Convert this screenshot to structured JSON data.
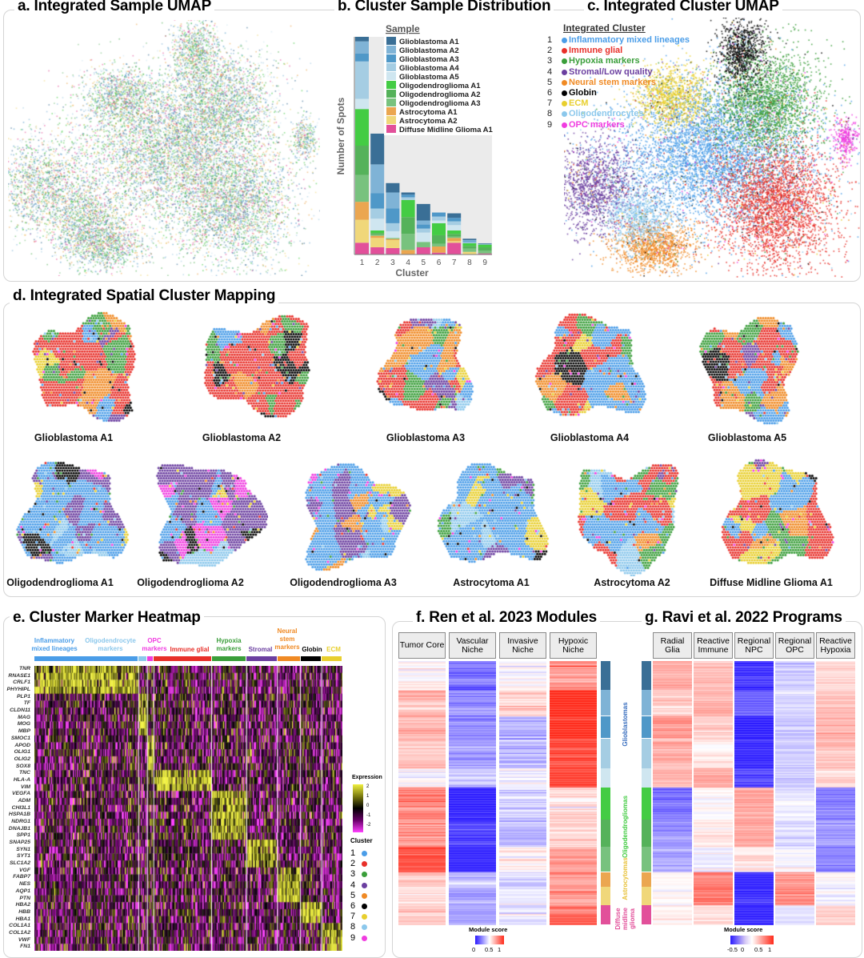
{
  "panels": {
    "a": {
      "title": "a. Integrated Sample UMAP"
    },
    "b": {
      "title": "b. Cluster Sample Distribution",
      "legend_title": "Sample"
    },
    "c": {
      "title": "c. Integrated Cluster UMAP",
      "legend_title": "Integrated Cluster"
    },
    "d": {
      "title": "d. Integrated Spatial Cluster Mapping"
    },
    "e": {
      "title": "e. Cluster Marker Heatmap",
      "expression_title": "Expression",
      "expression_ticks": [
        "2",
        "1",
        "0",
        "-1",
        "-2"
      ],
      "cluster_title": "Cluster"
    },
    "f": {
      "title": "f. Ren et al. 2023 Modules",
      "legend_title": "Module score",
      "legend_ticks": [
        "0",
        "0.5",
        "1"
      ]
    },
    "g": {
      "title": "g. Ravi et al. 2022 Programs",
      "legend_title": "Module score",
      "legend_ticks": [
        "-0.5",
        "0",
        "0.5",
        "1"
      ]
    }
  },
  "clusters": [
    {
      "id": "1",
      "name": "Inflammatory mixed lineages",
      "color": "#4a9de8"
    },
    {
      "id": "2",
      "name": "Immune glial",
      "color": "#e8302a"
    },
    {
      "id": "3",
      "name": "Hypoxia markers",
      "color": "#3a9e3a"
    },
    {
      "id": "4",
      "name": "Stromal/Low quality",
      "color": "#6b3fa0"
    },
    {
      "id": "5",
      "name": "Neural stem markers",
      "color": "#f08a24"
    },
    {
      "id": "6",
      "name": "Globin",
      "color": "#000000"
    },
    {
      "id": "7",
      "name": "ECM",
      "color": "#e8cf2e"
    },
    {
      "id": "8",
      "name": "Oligodendrocytes",
      "color": "#8cc8ec"
    },
    {
      "id": "9",
      "name": "OPC markers",
      "color": "#f03ce0"
    }
  ],
  "samples": [
    "Glioblastoma A1",
    "Glioblastoma A2",
    "Glioblastoma A3",
    "Glioblastoma A4",
    "Glioblastoma A5",
    "Oligodendroglioma A1",
    "Oligodendroglioma A2",
    "Oligodendroglioma A3",
    "Astrocytoma A1",
    "Astrocytoma A2",
    "Diffuse Midline Glioma A1"
  ],
  "heatmap": {
    "groups": [
      {
        "label": "Inflammatory mixed lineages",
        "color": "#4a9de8"
      },
      {
        "label": "Oligodendrocyte markers",
        "color": "#8cc8ec"
      },
      {
        "label": "OPC markers",
        "color": "#f03ce0"
      },
      {
        "label": "Immune glial",
        "color": "#e8302a"
      },
      {
        "label": "Hypoxia markers",
        "color": "#3a9e3a"
      },
      {
        "label": "Stromal",
        "color": "#6b3fa0"
      },
      {
        "label": "Neural stem markers",
        "color": "#f08a24"
      },
      {
        "label": "Globin",
        "color": "#000000"
      },
      {
        "label": "ECM",
        "color": "#e8cf2e"
      }
    ],
    "genes": [
      "TNR",
      "RNASE1",
      "CRLF1",
      "PHYHIPL",
      "PLP1",
      "TF",
      "CLDN11",
      "MAG",
      "MOG",
      "MBP",
      "SMOC1",
      "APOD",
      "OLIG1",
      "OLIG2",
      "SOX8",
      "TNC",
      "HLA-A",
      "VIM",
      "VEGFA",
      "ADM",
      "CHI3L1",
      "HSPA1B",
      "NDRG1",
      "DNAJB1",
      "SPP1",
      "SNAP25",
      "SYN1",
      "SYT1",
      "SLC1A2",
      "VGF",
      "FABP7",
      "NES",
      "AQP1",
      "PTN",
      "HBA2",
      "HBB",
      "HBA1",
      "COL1A1",
      "COL1A2",
      "VWF",
      "FN1"
    ],
    "colorscale": [
      "#ff40ff",
      "#6a006a",
      "#000000",
      "#7a7a10",
      "#f0f040"
    ]
  },
  "modules": {
    "groups": [
      {
        "label": "Glioblastomas",
        "color": "#3a6fbf"
      },
      {
        "label": "Oligodendrogliomas",
        "color": "#44cc44"
      },
      {
        "label": "Astrocytomas",
        "color": "#e8c23a"
      },
      {
        "label": "Diffuse midline glioma",
        "color": "#e2509a"
      }
    ],
    "ren": {
      "columns": [
        "Tumor Core",
        "Vascular Niche",
        "Invasive Niche",
        "Hypoxic Niche"
      ],
      "mean_score_by_group": [
        [
          0.62,
          0.28,
          0.5,
          0.92
        ],
        [
          0.82,
          0.04,
          0.45,
          0.6
        ],
        [
          0.7,
          0.3,
          0.55,
          0.75
        ],
        [
          0.65,
          0.25,
          0.48,
          0.85
        ]
      ],
      "colors": [
        "#2a1aff",
        "#ffffff",
        "#ff2a1a"
      ]
    },
    "ravi": {
      "columns": [
        "Radial Glia",
        "Reactive Immune",
        "Regional NPC",
        "Regional OPC",
        "Reactive Hypoxia"
      ],
      "mean_score_by_group": [
        [
          0.55,
          0.45,
          -0.5,
          0.05,
          0.45
        ],
        [
          -0.15,
          0.3,
          0.6,
          0.05,
          -0.1
        ],
        [
          0.3,
          0.8,
          -0.4,
          0.55,
          0.2
        ],
        [
          0.3,
          0.4,
          -0.5,
          0.1,
          0.4
        ]
      ],
      "colors": [
        "#2a1aff",
        "#ffffff",
        "#ff2a1a"
      ]
    }
  },
  "chart_data": [
    {
      "type": "bar",
      "stacked": true,
      "title": "b. Cluster Sample Distribution",
      "xlabel": "Cluster",
      "ylabel": "Number of Spots",
      "categories": [
        "1",
        "2",
        "3",
        "4",
        "5",
        "6",
        "7",
        "8",
        "9"
      ],
      "legend_title": "Sample",
      "legend_position": "top-right",
      "grid": false,
      "series": [
        {
          "name": "Glioblastoma A1",
          "color": "#3a6f96",
          "values": [
            17,
            115,
            35,
            8,
            62,
            0,
            17,
            5,
            2
          ]
        },
        {
          "name": "Glioblastoma A2",
          "color": "#7fb3d6",
          "values": [
            45,
            108,
            60,
            0,
            15,
            0,
            0,
            4,
            1
          ]
        },
        {
          "name": "Glioblastoma A3",
          "color": "#4f98c8",
          "values": [
            30,
            57,
            55,
            10,
            15,
            15,
            13,
            4,
            1
          ]
        },
        {
          "name": "Glioblastoma A4",
          "color": "#a5cde3",
          "values": [
            140,
            38,
            30,
            10,
            15,
            15,
            14,
            4,
            1
          ]
        },
        {
          "name": "Glioblastoma A5",
          "color": "#cfe6f0",
          "values": [
            38,
            44,
            25,
            0,
            35,
            10,
            20,
            0,
            0
          ]
        },
        {
          "name": "Oligodendroglioma A1",
          "color": "#44cc44",
          "values": [
            137,
            10,
            0,
            64,
            0,
            45,
            13,
            10,
            10
          ]
        },
        {
          "name": "Oligodendroglioma A2",
          "color": "#55b25a",
          "values": [
            110,
            6,
            0,
            63,
            0,
            32,
            10,
            10,
            12
          ]
        },
        {
          "name": "Oligodendroglioma A3",
          "color": "#78c27e",
          "values": [
            100,
            4,
            4,
            60,
            20,
            10,
            5,
            12,
            11
          ]
        },
        {
          "name": "Astrocytoma A1",
          "color": "#eba650",
          "values": [
            67,
            8,
            4,
            17,
            0,
            23,
            12,
            0,
            0
          ]
        },
        {
          "name": "Astrocytoma A2",
          "color": "#f0d77a",
          "values": [
            86,
            35,
            30,
            0,
            0,
            0,
            6,
            10,
            0
          ]
        },
        {
          "name": "Diffuse Midline Glioma A1",
          "color": "#e2509a",
          "values": [
            44,
            27,
            24,
            0,
            27,
            7,
            44,
            0,
            4
          ]
        }
      ]
    }
  ]
}
